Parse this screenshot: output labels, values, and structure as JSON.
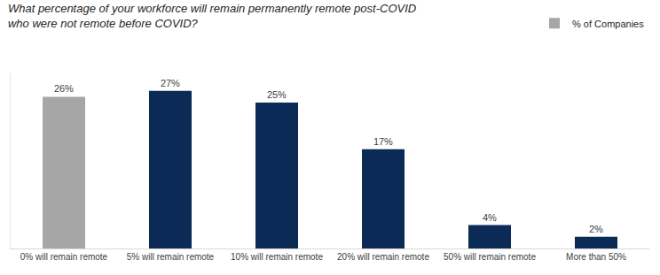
{
  "chart_data": {
    "type": "bar",
    "title": "What percentage of your workforce will remain permanently remote post-COVID\nwho were not remote before COVID?",
    "categories": [
      "0% will remain remote",
      "5% will remain remote",
      "10% will remain remote",
      "20% will remain remote",
      "50% will remain remote",
      "More than 50%"
    ],
    "series": [
      {
        "name": "% of Companies",
        "values": [
          26,
          27,
          25,
          17,
          4,
          2
        ],
        "value_labels": [
          "26%",
          "27%",
          "25%",
          "17%",
          "4%",
          "2%"
        ],
        "colors": [
          "#a6a6a6",
          "#0b2a55",
          "#0b2a55",
          "#0b2a55",
          "#0b2a55",
          "#0b2a55"
        ]
      }
    ],
    "ylim": [
      0,
      30
    ],
    "data_labels": true,
    "tick_labels": "x",
    "grid": false,
    "legend": "top-right"
  }
}
